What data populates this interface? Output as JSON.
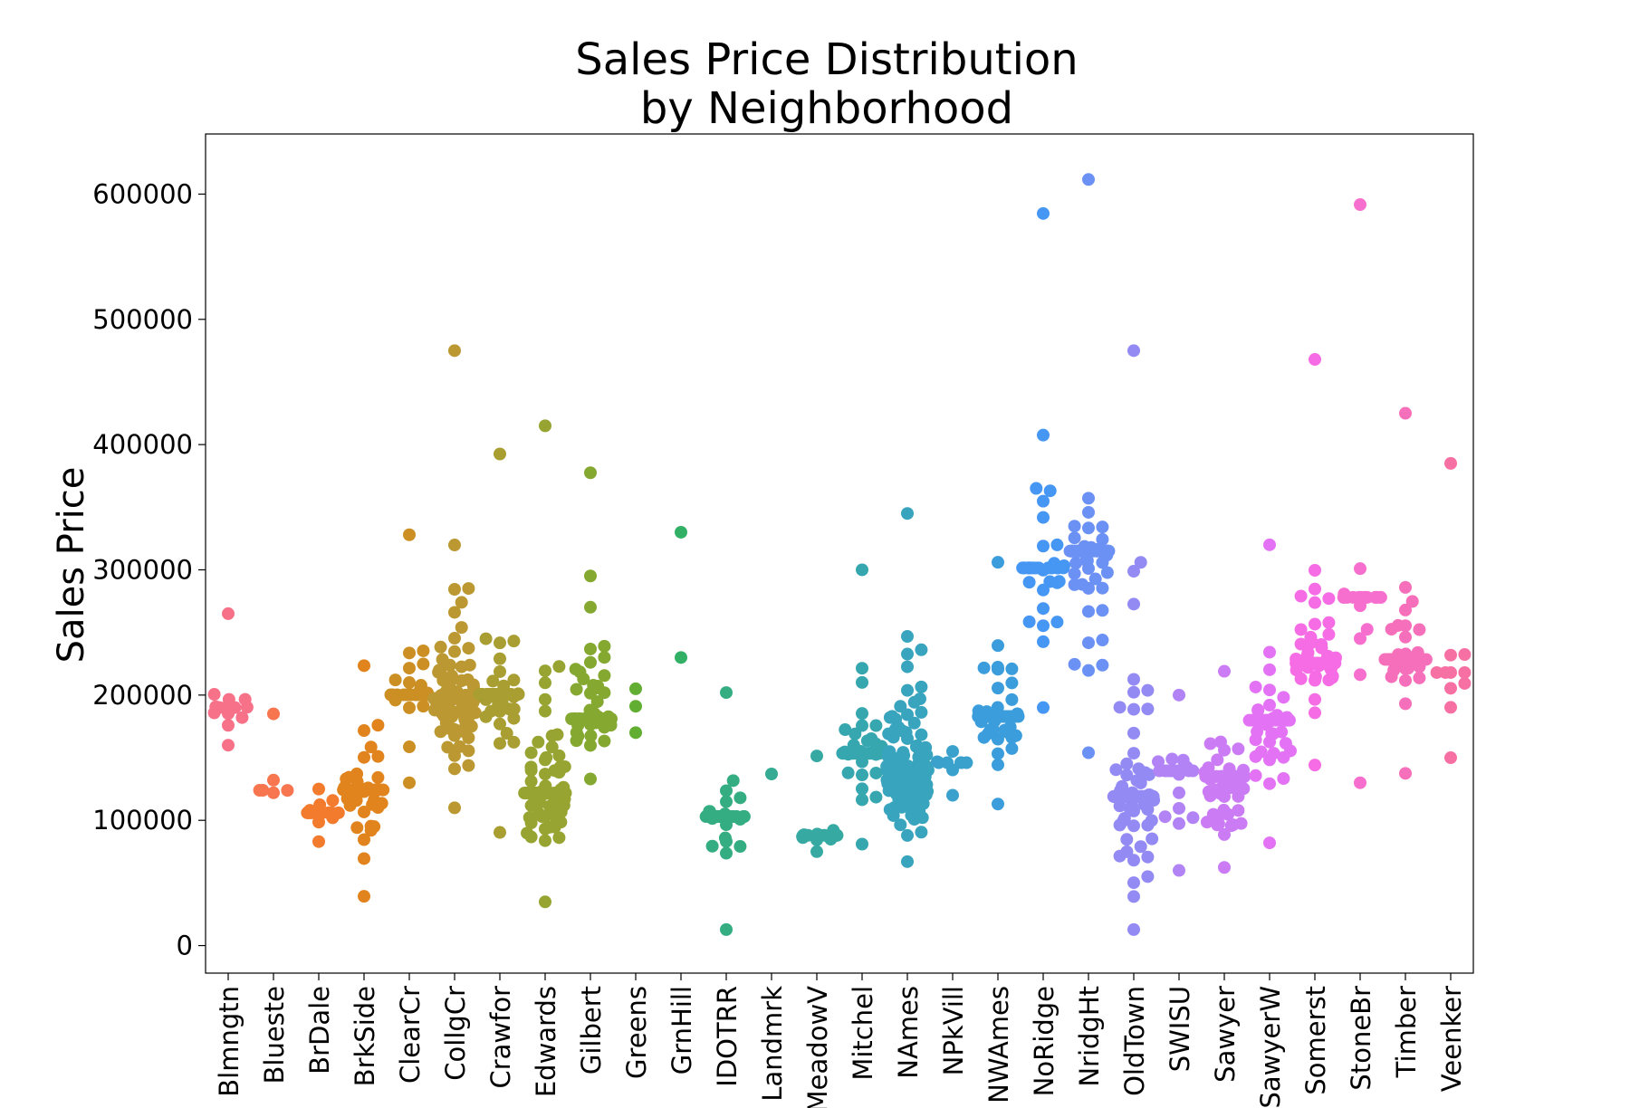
{
  "chart_data": {
    "type": "scatter",
    "subtype": "swarm",
    "title_lines": [
      "Sales Price Distribution",
      "by Neighborhood"
    ],
    "xlabel": "",
    "ylabel": "Sales Price",
    "ylim": [
      -22000,
      648000
    ],
    "yticks": [
      0,
      100000,
      200000,
      300000,
      400000,
      500000,
      600000
    ],
    "ytick_labels": [
      "0",
      "100000",
      "200000",
      "300000",
      "400000",
      "500000",
      "600000"
    ],
    "grid": false,
    "legend": "none",
    "categories": [
      {
        "name": "Blmngtn",
        "color": "#f77189",
        "n": 17,
        "min": 160000,
        "max": 265000,
        "median": 190000
      },
      {
        "name": "Blueste",
        "color": "#f7754f",
        "n": 6,
        "min": 122000,
        "max": 185000,
        "median": 124000
      },
      {
        "name": "BrDale",
        "color": "#f27b2e",
        "n": 16,
        "min": 83000,
        "max": 125000,
        "median": 106000
      },
      {
        "name": "BrkSide",
        "color": "#e1841d",
        "n": 58,
        "min": 39300,
        "max": 223500,
        "median": 124300
      },
      {
        "name": "ClearCr",
        "color": "#cc8f23",
        "n": 28,
        "min": 130000,
        "max": 328000,
        "median": 200250
      },
      {
        "name": "CollgCr",
        "color": "#bb9832",
        "n": 150,
        "min": 110000,
        "max": 475000,
        "median": 197200
      },
      {
        "name": "Crawfor",
        "color": "#a89e31",
        "n": 51,
        "min": 90350,
        "max": 392500,
        "median": 200624
      },
      {
        "name": "Edwards",
        "color": "#97a431",
        "n": 100,
        "min": 34900,
        "max": 415000,
        "median": 121750
      },
      {
        "name": "Gilbert",
        "color": "#85a831",
        "n": 79,
        "min": 133000,
        "max": 377500,
        "median": 181000
      },
      {
        "name": "Greens",
        "color": "#61ae32",
        "n": 3,
        "min": 170000,
        "max": 205000,
        "median": 190000
      },
      {
        "name": "GrnHill",
        "color": "#32b166",
        "n": 2,
        "min": 230000,
        "max": 330000,
        "median": 280000
      },
      {
        "name": "IDOTRR",
        "color": "#34ad82",
        "n": 37,
        "min": 12789,
        "max": 202000,
        "median": 103000
      },
      {
        "name": "Landmrk",
        "color": "#35ab93",
        "n": 1,
        "min": 137000,
        "max": 137000,
        "median": 137000
      },
      {
        "name": "MeadowV",
        "color": "#36a9a2",
        "n": 17,
        "min": 75000,
        "max": 151400,
        "median": 88000
      },
      {
        "name": "Mitchel",
        "color": "#37a7af",
        "n": 49,
        "min": 81000,
        "max": 300000,
        "median": 153500
      },
      {
        "name": "NAmes",
        "color": "#38a4bd",
        "n": 225,
        "min": 67000,
        "max": 345000,
        "median": 140000
      },
      {
        "name": "NPkVill",
        "color": "#39a1cc",
        "n": 9,
        "min": 120000,
        "max": 155000,
        "median": 146000
      },
      {
        "name": "NWAmes",
        "color": "#3b9ddc",
        "n": 73,
        "min": 113000,
        "max": 306000,
        "median": 182900
      },
      {
        "name": "NoRidge",
        "color": "#4697f4",
        "n": 41,
        "min": 190000,
        "max": 584500,
        "median": 301500
      },
      {
        "name": "NridgHt",
        "color": "#6c91f4",
        "n": 77,
        "min": 154000,
        "max": 611657,
        "median": 315000
      },
      {
        "name": "OldTown",
        "color": "#948af4",
        "n": 113,
        "min": 12789,
        "max": 475000,
        "median": 119000
      },
      {
        "name": "SWISU",
        "color": "#b283f4",
        "n": 25,
        "min": 60000,
        "max": 200000,
        "median": 139500
      },
      {
        "name": "Sawyer",
        "color": "#cb7cf4",
        "n": 74,
        "min": 62383,
        "max": 219000,
        "median": 135000
      },
      {
        "name": "SawyerW",
        "color": "#e373f4",
        "n": 59,
        "min": 82000,
        "max": 320000,
        "median": 179900
      },
      {
        "name": "Somerst",
        "color": "#f56ce4",
        "n": 86,
        "min": 144152,
        "max": 468000,
        "median": 225500
      },
      {
        "name": "StoneBr",
        "color": "#f66fcf",
        "n": 25,
        "min": 130000,
        "max": 591587,
        "median": 278000
      },
      {
        "name": "Timber",
        "color": "#f66fba",
        "n": 38,
        "min": 137500,
        "max": 425000,
        "median": 228475
      },
      {
        "name": "Veenker",
        "color": "#f770a4",
        "n": 11,
        "min": 150000,
        "max": 385000,
        "median": 218000
      }
    ]
  }
}
